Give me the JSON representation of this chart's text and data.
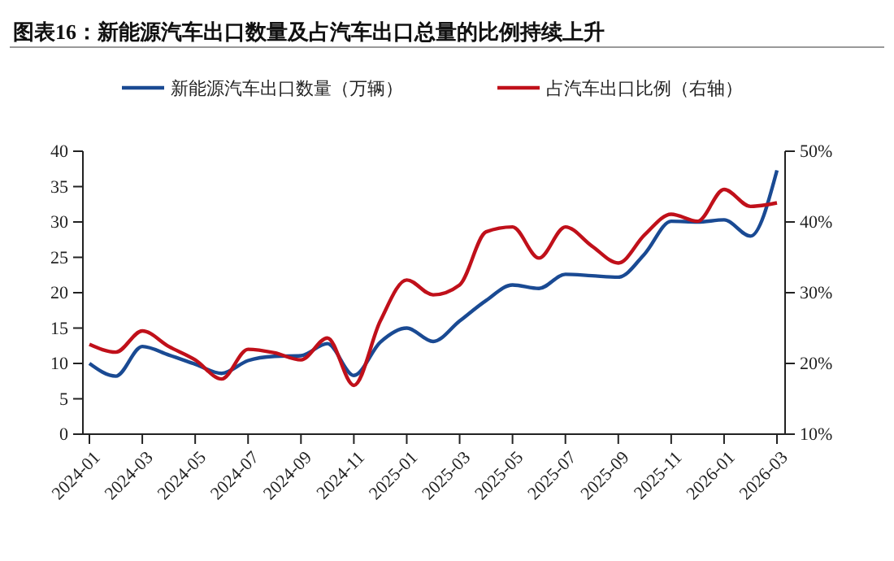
{
  "chart_data": {
    "type": "line",
    "title": "图表16：新能源汽车出口数量及占汽车出口总量的比例持续上升",
    "categories": [
      "2024-01",
      null,
      "2024-03",
      null,
      "2024-05",
      null,
      "2024-07",
      null,
      "2024-09",
      null,
      "2024-11",
      null,
      "2025-01",
      null,
      "2025-03",
      null,
      "2025-05",
      null,
      "2025-07",
      null,
      "2025-09",
      null,
      "2025-11",
      null,
      "2026-01",
      null,
      "2026-03"
    ],
    "series": [
      {
        "name": "新能源汽车出口数量（万辆）",
        "color": "#1a4a93",
        "values": [
          10.0,
          8.2,
          12.4,
          11.2,
          9.9,
          8.6,
          10.4,
          11.0,
          11.1,
          12.8,
          8.3,
          13.0,
          15.0,
          13.1,
          16.0,
          18.9,
          21.1,
          20.6,
          22.6,
          22.4,
          22.2,
          25.5,
          30.1,
          30.0,
          30.3,
          28.0,
          37.3
        ]
      },
      {
        "name": "占汽车出口比例（右轴）",
        "color": "#c0101a",
        "axis": "y2",
        "values": [
          22.7,
          21.6,
          24.6,
          22.4,
          20.5,
          17.8,
          22.0,
          21.5,
          20.5,
          23.6,
          16.9,
          26.0,
          31.8,
          29.7,
          31.1,
          38.6,
          39.3,
          34.9,
          39.3,
          36.6,
          34.2,
          38.2,
          41.1,
          40.1,
          44.6,
          42.2,
          42.7
        ]
      }
    ],
    "ylim": [
      0,
      40
    ],
    "yticks": [
      0,
      5,
      10,
      15,
      20,
      25,
      30,
      35,
      40
    ],
    "y2lim": [
      10,
      50
    ],
    "y2ticks": [
      {
        "value": 10,
        "label": "10%"
      },
      {
        "value": 20,
        "label": "20%"
      },
      {
        "value": 30,
        "label": "30%"
      },
      {
        "value": 40,
        "label": "40%"
      },
      {
        "value": 50,
        "label": "50%"
      }
    ],
    "legend": "top",
    "grid": false
  }
}
